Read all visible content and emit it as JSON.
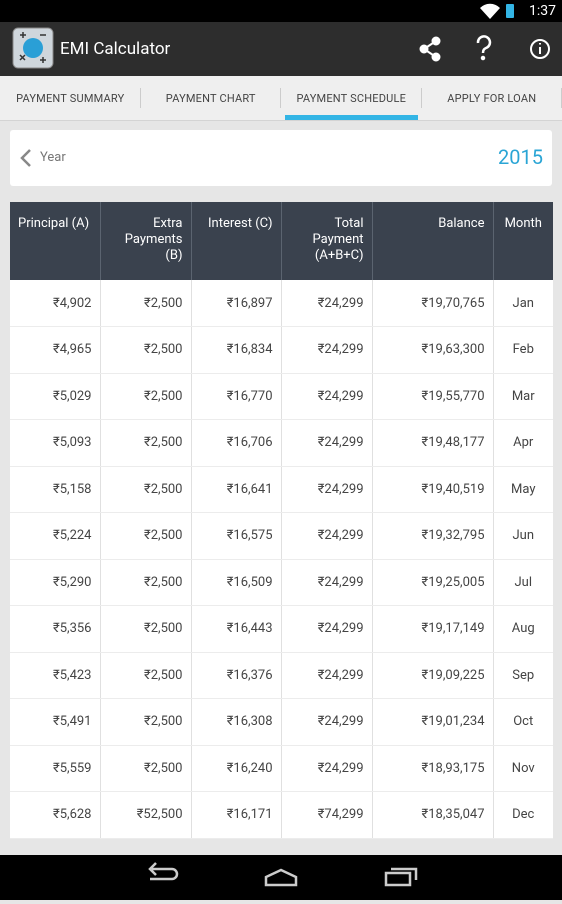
{
  "status_bar": {
    "time": "1:37"
  },
  "app_bar": {
    "title": "EMI Calculator"
  },
  "tabs": [
    "PAYMENT SUMMARY",
    "PAYMENT CHART",
    "PAYMENT SCHEDULE",
    "APPLY FOR LOAN"
  ],
  "selected_tab": 2,
  "year_selector": {
    "label": "Year",
    "value": "2015"
  },
  "table": {
    "columns": [
      "Principal (A)",
      "Extra Payments (B)",
      "Interest (C)",
      "Total Payment (A+B+C)",
      "Balance",
      "Month"
    ],
    "rows": [
      [
        "₹4,902",
        "₹2,500",
        "₹16,897",
        "₹24,299",
        "₹19,70,765",
        "Jan"
      ],
      [
        "₹4,965",
        "₹2,500",
        "₹16,834",
        "₹24,299",
        "₹19,63,300",
        "Feb"
      ],
      [
        "₹5,029",
        "₹2,500",
        "₹16,770",
        "₹24,299",
        "₹19,55,770",
        "Mar"
      ],
      [
        "₹5,093",
        "₹2,500",
        "₹16,706",
        "₹24,299",
        "₹19,48,177",
        "Apr"
      ],
      [
        "₹5,158",
        "₹2,500",
        "₹16,641",
        "₹24,299",
        "₹19,40,519",
        "May"
      ],
      [
        "₹5,224",
        "₹2,500",
        "₹16,575",
        "₹24,299",
        "₹19,32,795",
        "Jun"
      ],
      [
        "₹5,290",
        "₹2,500",
        "₹16,509",
        "₹24,299",
        "₹19,25,005",
        "Jul"
      ],
      [
        "₹5,356",
        "₹2,500",
        "₹16,443",
        "₹24,299",
        "₹19,17,149",
        "Aug"
      ],
      [
        "₹5,423",
        "₹2,500",
        "₹16,376",
        "₹24,299",
        "₹19,09,225",
        "Sep"
      ],
      [
        "₹5,491",
        "₹2,500",
        "₹16,308",
        "₹24,299",
        "₹19,01,234",
        "Oct"
      ],
      [
        "₹5,559",
        "₹2,500",
        "₹16,240",
        "₹24,299",
        "₹18,93,175",
        "Nov"
      ],
      [
        "₹5,628",
        "₹52,500",
        "₹16,171",
        "₹74,299",
        "₹18,35,047",
        "Dec"
      ]
    ]
  }
}
